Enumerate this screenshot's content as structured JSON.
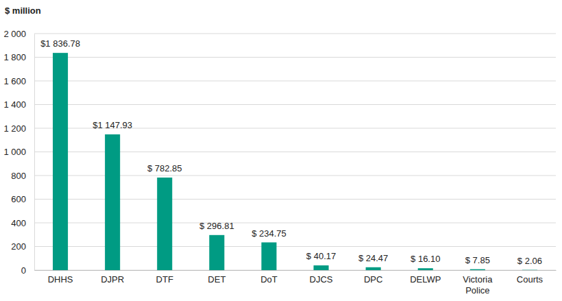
{
  "chart_data": {
    "type": "bar",
    "y_label": "$ million",
    "categories": [
      "DHHS",
      "DJPR",
      "DTF",
      "DET",
      "DoT",
      "DJCS",
      "DPC",
      "DELWP",
      "Victoria Police",
      "Courts"
    ],
    "values": [
      1836.78,
      1147.93,
      782.85,
      296.81,
      234.75,
      40.17,
      24.47,
      16.1,
      7.85,
      2.06
    ],
    "value_labels": [
      "$1 836.78",
      "$1 147.93",
      "$ 782.85",
      "$ 296.81",
      "$ 234.75",
      "$ 40.17",
      "$ 24.47",
      "$ 16.10",
      "$ 7.85",
      "$ 2.06"
    ],
    "data_labels": true,
    "color": "#009b83",
    "ylim": [
      0,
      2000
    ],
    "yticks": [
      0,
      200,
      400,
      600,
      800,
      {
        "value": 1000,
        "label": "1 000"
      },
      {
        "value": 1200,
        "label": "1 200"
      },
      {
        "value": 1400,
        "label": "1 400"
      },
      {
        "value": 1600,
        "label": "1 600"
      },
      {
        "value": 1800,
        "label": "1 800"
      },
      {
        "value": 2000,
        "label": "2 000"
      }
    ],
    "grid": true
  }
}
